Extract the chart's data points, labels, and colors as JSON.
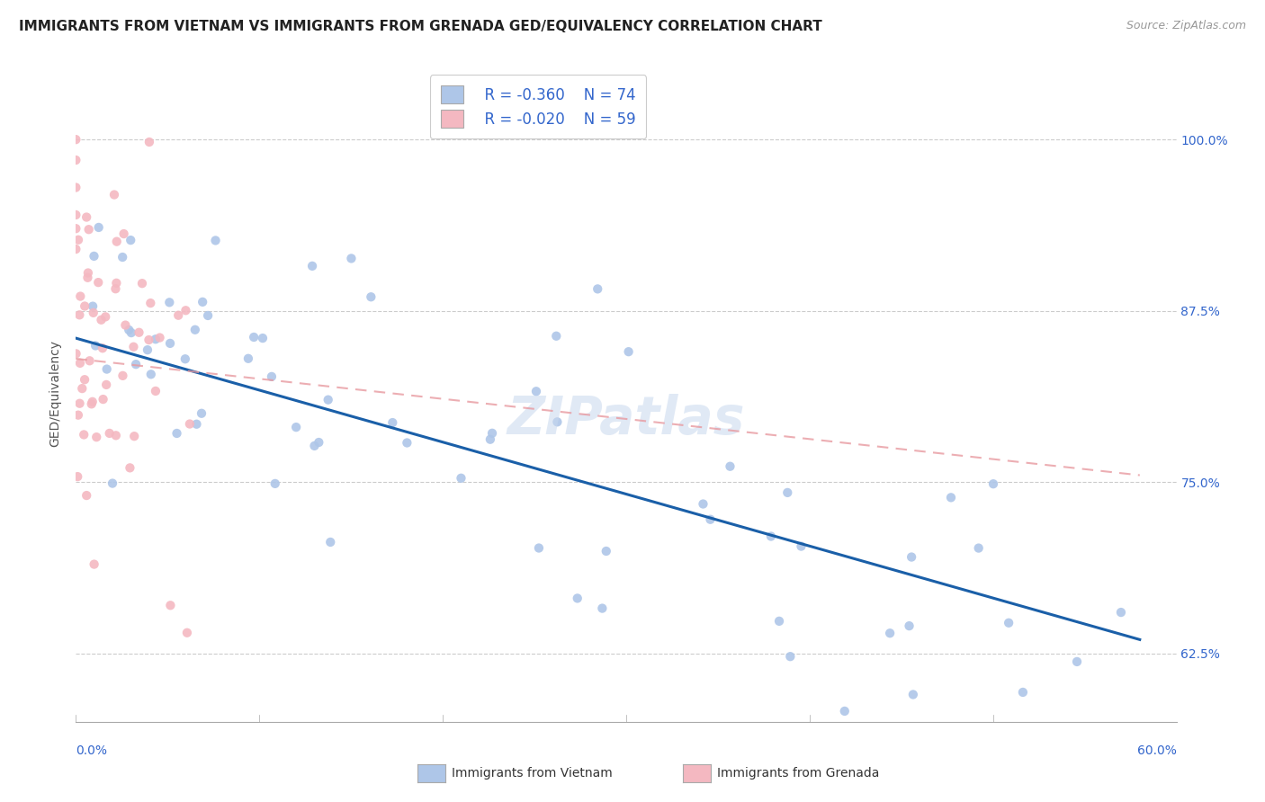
{
  "title": "IMMIGRANTS FROM VIETNAM VS IMMIGRANTS FROM GRENADA GED/EQUIVALENCY CORRELATION CHART",
  "source": "Source: ZipAtlas.com",
  "ylabel": "GED/Equivalency",
  "ytick_labels": [
    "62.5%",
    "75.0%",
    "87.5%",
    "100.0%"
  ],
  "ytick_values": [
    0.625,
    0.75,
    0.875,
    1.0
  ],
  "xlim": [
    0.0,
    0.6
  ],
  "ylim": [
    0.575,
    1.055
  ],
  "legend_r1": "R = -0.360",
  "legend_n1": "N = 74",
  "legend_r2": "R = -0.020",
  "legend_n2": "N = 59",
  "color_vietnam": "#aec6e8",
  "color_grenada": "#f4b8c1",
  "line_color_vietnam": "#1a5fa8",
  "line_color_grenada": "#e89aa0",
  "title_fontsize": 11,
  "axis_label_fontsize": 10,
  "tick_fontsize": 10,
  "source_fontsize": 9,
  "background_color": "#ffffff",
  "grid_color": "#cccccc",
  "tick_color": "#3366cc",
  "label_color": "#555555"
}
